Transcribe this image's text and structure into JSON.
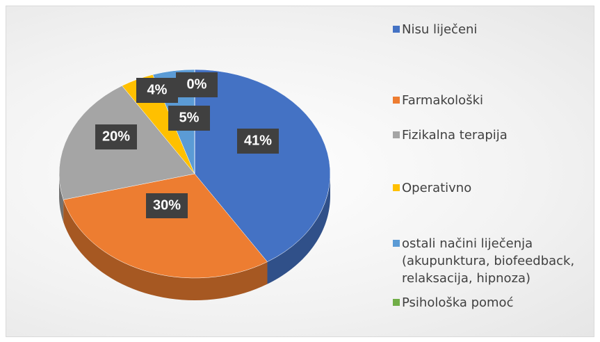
{
  "chart_data": {
    "type": "pie",
    "categories": [
      "Nisu liječeni",
      "Farmakološki",
      "Fizikalna terapija",
      "Operativno",
      "ostali načini liječenja (akupunktura, biofeedback, relaksacija, hipnoza)",
      "Psihološka pomoć"
    ],
    "values": [
      41,
      30,
      20,
      4,
      5,
      0
    ],
    "value_labels": [
      "41%",
      "30%",
      "20%",
      "4%",
      "5%",
      "0%"
    ],
    "colors": [
      "#4472c4",
      "#ed7d31",
      "#a5a5a5",
      "#ffc000",
      "#5b9bd5",
      "#70ad47"
    ],
    "legend": "right"
  }
}
